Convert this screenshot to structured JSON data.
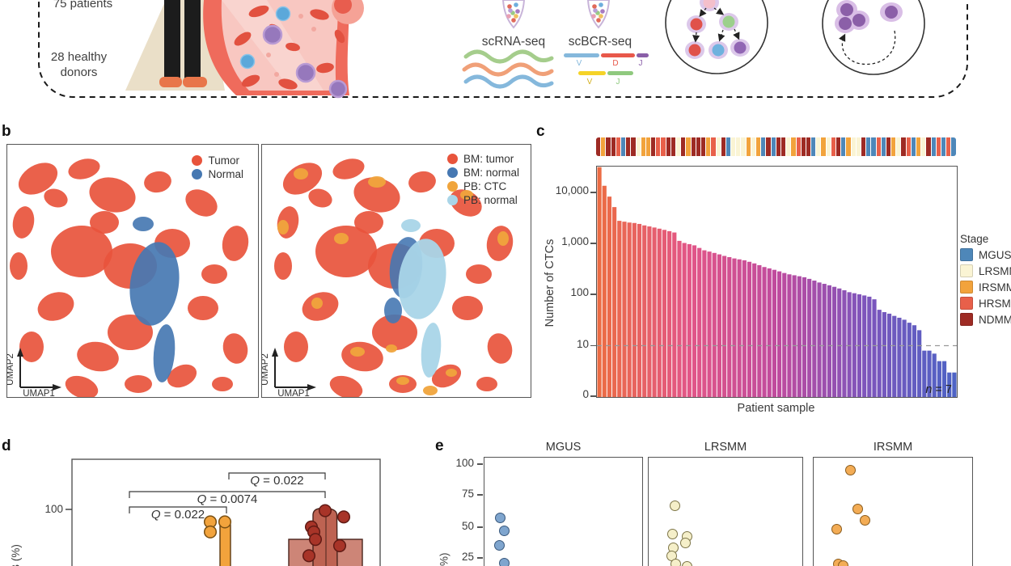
{
  "colors": {
    "tumor_red": "#E8543C",
    "normal_blue": "#4678B2",
    "pb_ctc_orange": "#F0A43C",
    "pb_normal_lightblue": "#A9D5E8",
    "stages": {
      "MGUS": "#4E87B9",
      "LRSMM": "#FAF4D4",
      "IRSMM": "#F2A33C",
      "HRSMM": "#E8604A",
      "NDMM": "#9E2B24"
    },
    "bar_gradient": [
      "#EC6C44",
      "#E25687",
      "#C04B9E",
      "#7E55BC",
      "#4E63C5"
    ]
  },
  "panel_a": {
    "patients": "75 patients",
    "donors": [
      "28 healthy",
      "donors"
    ],
    "scrna_label": "scRNA-seq",
    "scbcr_label": "scBCR-seq",
    "vdj_row1": [
      "V",
      "D",
      "J"
    ],
    "vdj_row2": [
      "V",
      "J"
    ]
  },
  "panel_b": {
    "letter": "b",
    "xlabel": "UMAP1",
    "ylabel": "UMAP2",
    "legend_left": [
      {
        "label": "Tumor",
        "color": "#E8543C"
      },
      {
        "label": "Normal",
        "color": "#4678B2"
      }
    ],
    "legend_right": [
      {
        "label": "BM: tumor",
        "color": "#E8543C"
      },
      {
        "label": "BM: normal",
        "color": "#4678B2"
      },
      {
        "label": "PB: CTC",
        "color": "#F0A43C"
      },
      {
        "label": "PB: normal",
        "color": "#A9D5E8"
      }
    ]
  },
  "panel_c": {
    "letter": "c",
    "ylabel": "Number of CTCs",
    "xlabel": "Patient sample",
    "n_label": "n = 7",
    "ytick_labels": [
      "10,000",
      "1,000",
      "100",
      "10",
      "0"
    ],
    "legend_title": "Stage",
    "stage_legend": [
      {
        "label": "MGUS",
        "color": "#4E87B9"
      },
      {
        "label": "LRSMM",
        "color": "#FAF4D4"
      },
      {
        "label": "IRSMM",
        "color": "#F2A33C"
      },
      {
        "label": "HRSMM",
        "color": "#E8604A"
      },
      {
        "label": "NDMM",
        "color": "#9E2B24"
      }
    ]
  },
  "panel_d": {
    "letter": "d",
    "ytick": "100",
    "ylabel_partial": "B (%)",
    "comparisons": [
      {
        "label": "Q = 0.022",
        "between": [
          0,
          1
        ]
      },
      {
        "label": "Q = 0.0074",
        "between": [
          0,
          2
        ]
      },
      {
        "label": "Q = 0.022",
        "between": [
          1,
          2
        ]
      }
    ]
  },
  "panel_e": {
    "letter": "e",
    "ylabel_partial": "(%)",
    "ytick_labels": [
      "100",
      "75",
      "50",
      "25"
    ]
  },
  "chart_data": [
    {
      "panel": "c",
      "type": "bar",
      "title": "",
      "xlabel": "Patient sample",
      "ylabel": "Number of CTCs",
      "yscale": "log",
      "yticks": [
        0,
        10,
        100,
        1000,
        10000
      ],
      "dashed_line": 10,
      "n_below_line": 7,
      "n_annotation": "n = 7",
      "legend_position": "right",
      "values": [
        30000,
        13000,
        8000,
        5000,
        2700,
        2600,
        2500,
        2450,
        2350,
        2200,
        2100,
        2000,
        1900,
        1800,
        1700,
        1600,
        1100,
        1000,
        950,
        900,
        800,
        720,
        680,
        640,
        600,
        560,
        530,
        500,
        480,
        460,
        430,
        400,
        370,
        340,
        320,
        300,
        280,
        260,
        245,
        235,
        225,
        215,
        200,
        185,
        170,
        160,
        150,
        140,
        130,
        120,
        110,
        105,
        100,
        95,
        90,
        80,
        50,
        45,
        42,
        38,
        35,
        32,
        28,
        25,
        20,
        8,
        8,
        7,
        5,
        5,
        3,
        3
      ],
      "stage_sequence": [
        "NDMM",
        "IRSMM",
        "NDMM",
        "NDMM",
        "HRSMM",
        "MGUS",
        "NDMM",
        "NDMM",
        "LRSMM",
        "IRSMM",
        "IRSMM",
        "NDMM",
        "HRSMM",
        "HRSMM",
        "NDMM",
        "NDMM",
        "LRSMM",
        "NDMM",
        "IRSMM",
        "NDMM",
        "NDMM",
        "NDMM",
        "IRSMM",
        "HRSMM",
        "LRSMM",
        "NDMM",
        "MGUS",
        "LRSMM",
        "LRSMM",
        "LRSMM",
        "IRSMM",
        "LRSMM",
        "IRSMM",
        "MGUS",
        "NDMM",
        "MGUS",
        "NDMM",
        "NDMM",
        "LRSMM",
        "IRSMM",
        "HRSMM",
        "NDMM",
        "NDMM",
        "MGUS",
        "LRSMM",
        "IRSMM",
        "LRSMM",
        "HRSMM",
        "NDMM",
        "MGUS",
        "IRSMM",
        "LRSMM",
        "LRSMM",
        "NDMM",
        "MGUS",
        "MGUS",
        "HRSMM",
        "MGUS",
        "NDMM",
        "IRSMM",
        "LRSMM",
        "NDMM",
        "HRSMM",
        "MGUS",
        "IRSMM",
        "LRSMM",
        "NDMM",
        "MGUS",
        "HRSMM",
        "MGUS",
        "HRSMM",
        "MGUS"
      ]
    },
    {
      "panel": "d",
      "type": "box-scatter",
      "ytick": 100,
      "groups": [
        {
          "points": []
        },
        {
          "color": "#F2A33C",
          "stroke": "#7A5014",
          "points": [
            {
              "v": 90,
              "dx": -20
            },
            {
              "v": 82,
              "dx": -20
            },
            {
              "v": 90,
              "dx": -2
            }
          ]
        },
        {
          "color": "#A83428",
          "stroke": "#611A14",
          "points": [
            {
              "v": 99,
              "dx": 0
            },
            {
              "v": 94,
              "dx": 23
            },
            {
              "v": 86,
              "dx": -17
            },
            {
              "v": 82,
              "dx": -14
            },
            {
              "v": 76,
              "dx": -12
            },
            {
              "v": 71,
              "dx": 18
            },
            {
              "v": 63,
              "dx": -20
            }
          ]
        }
      ]
    },
    {
      "panel": "e",
      "type": "scatter",
      "yticks": [
        100,
        75,
        50,
        25
      ],
      "facets": [
        {
          "title": "MGUS",
          "fill": "#7FA5CE",
          "stroke": "#39587C",
          "points": [
            {
              "v": 57,
              "dx": 19
            },
            {
              "v": 47,
              "dx": 24
            },
            {
              "v": 35,
              "dx": 18
            },
            {
              "v": 21,
              "dx": 24
            }
          ]
        },
        {
          "title": "LRSMM",
          "fill": "#F5EFC9",
          "stroke": "#7D7548",
          "points": [
            {
              "v": 67,
              "dx": 32
            },
            {
              "v": 44,
              "dx": 29
            },
            {
              "v": 42,
              "dx": 47
            },
            {
              "v": 37,
              "dx": 45
            },
            {
              "v": 33,
              "dx": 30
            },
            {
              "v": 27,
              "dx": 28
            },
            {
              "v": 20,
              "dx": 33
            },
            {
              "v": 18,
              "dx": 47
            }
          ]
        },
        {
          "title": "IRSMM",
          "fill": "#F3AC55",
          "stroke": "#8A5C1E",
          "points": [
            {
              "v": 95,
              "dx": 45
            },
            {
              "v": 64,
              "dx": 54
            },
            {
              "v": 55,
              "dx": 63
            },
            {
              "v": 48,
              "dx": 28
            },
            {
              "v": 20,
              "dx": 30
            },
            {
              "v": 19,
              "dx": 36
            }
          ]
        }
      ]
    }
  ]
}
